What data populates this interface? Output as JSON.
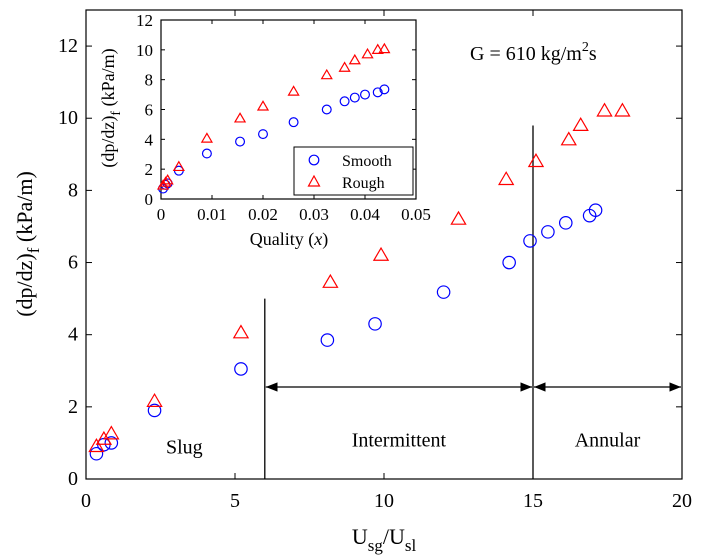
{
  "chart_data": [
    {
      "type": "scatter",
      "xlabel": "U_sg/U_sl",
      "xlabel_main": "U",
      "xlabel_sub1": "sg",
      "xlabel_slash": "/U",
      "xlabel_sub2": "sl",
      "ylabel_main": "(dp/dz)",
      "ylabel_sub": "f",
      "ylabel_unit": " (kPa/m)",
      "xlim": [
        0,
        20
      ],
      "ylim": [
        0,
        13
      ],
      "xticks": [
        0,
        5,
        10,
        15,
        20
      ],
      "yticks": [
        0,
        2,
        4,
        6,
        8,
        10,
        12
      ],
      "xtick_labels": [
        "0",
        "5",
        "10",
        "15",
        "20"
      ],
      "ytick_labels": [
        "0",
        "2",
        "4",
        "6",
        "8",
        "10",
        "12"
      ],
      "annotation": {
        "prefix": "G = 610 kg/m",
        "sup": "2",
        "suffix": "s"
      },
      "regions": [
        {
          "label": "Slug",
          "x_center": 3.3,
          "y": 0.9
        },
        {
          "label": "Intermittent",
          "x_from": 6,
          "x_to": 15,
          "y": 1.1
        },
        {
          "label": "Annular",
          "x_from": 15,
          "x_to": 20,
          "y": 1.1
        }
      ],
      "region_boundaries": [
        {
          "x": 6,
          "y_top": 5.0
        },
        {
          "x": 15,
          "y_top": 9.8
        }
      ],
      "region_arrow_y": 2.55,
      "series": [
        {
          "name": "Smooth",
          "marker": "circle",
          "color": "#0000ff",
          "points": [
            [
              0.35,
              0.7
            ],
            [
              0.6,
              0.95
            ],
            [
              0.85,
              1.0
            ],
            [
              2.3,
              1.9
            ],
            [
              5.2,
              3.05
            ],
            [
              8.1,
              3.85
            ],
            [
              9.7,
              4.3
            ],
            [
              12.0,
              5.18
            ],
            [
              14.2,
              6.0
            ],
            [
              14.9,
              6.6
            ],
            [
              15.5,
              6.85
            ],
            [
              16.1,
              7.1
            ],
            [
              16.9,
              7.3
            ],
            [
              17.1,
              7.45
            ]
          ]
        },
        {
          "name": "Rough",
          "marker": "triangle",
          "color": "#ff0000",
          "points": [
            [
              0.35,
              0.9
            ],
            [
              0.6,
              1.1
            ],
            [
              0.85,
              1.25
            ],
            [
              2.3,
              2.15
            ],
            [
              5.2,
              4.05
            ],
            [
              8.2,
              5.45
            ],
            [
              9.9,
              6.2
            ],
            [
              12.5,
              7.2
            ],
            [
              14.1,
              8.3
            ],
            [
              15.1,
              8.8
            ],
            [
              16.2,
              9.4
            ],
            [
              16.6,
              9.8
            ],
            [
              17.4,
              10.2
            ],
            [
              18.0,
              10.2
            ]
          ]
        }
      ]
    },
    {
      "type": "scatter",
      "xlabel_main": "Quality (",
      "xlabel_var": "x",
      "xlabel_end": ")",
      "ylabel_main": "(dp/dz)",
      "ylabel_sub": "f",
      "ylabel_unit": " (kPa/m)",
      "xlim": [
        0,
        0.05
      ],
      "ylim": [
        0,
        12
      ],
      "xticks": [
        0,
        0.01,
        0.02,
        0.03,
        0.04,
        0.05
      ],
      "yticks": [
        0,
        2,
        4,
        6,
        8,
        10,
        12
      ],
      "xtick_labels": [
        "0",
        "0.01",
        "0.02",
        "0.03",
        "0.04",
        "0.05"
      ],
      "ytick_labels": [
        "0",
        "2",
        "4",
        "6",
        "8",
        "10",
        "12"
      ],
      "legend": {
        "position": "bottom-right",
        "entries": [
          {
            "label": "Smooth",
            "marker": "circle",
            "color": "#0000ff"
          },
          {
            "label": "Rough",
            "marker": "triangle",
            "color": "#ff0000"
          }
        ]
      },
      "series": [
        {
          "name": "Smooth",
          "marker": "circle",
          "color": "#0000ff",
          "points": [
            [
              0.0004,
              0.7
            ],
            [
              0.0009,
              0.95
            ],
            [
              0.0013,
              1.05
            ],
            [
              0.0035,
              1.9
            ],
            [
              0.009,
              3.05
            ],
            [
              0.0155,
              3.85
            ],
            [
              0.02,
              4.35
            ],
            [
              0.026,
              5.15
            ],
            [
              0.0325,
              6.0
            ],
            [
              0.036,
              6.55
            ],
            [
              0.038,
              6.8
            ],
            [
              0.04,
              7.0
            ],
            [
              0.0425,
              7.15
            ],
            [
              0.0438,
              7.35
            ]
          ]
        },
        {
          "name": "Rough",
          "marker": "triangle",
          "color": "#ff0000",
          "points": [
            [
              0.0004,
              0.9
            ],
            [
              0.0009,
              1.1
            ],
            [
              0.0013,
              1.25
            ],
            [
              0.0035,
              2.15
            ],
            [
              0.009,
              4.05
            ],
            [
              0.0155,
              5.4
            ],
            [
              0.02,
              6.2
            ],
            [
              0.026,
              7.2
            ],
            [
              0.0325,
              8.3
            ],
            [
              0.036,
              8.8
            ],
            [
              0.038,
              9.3
            ],
            [
              0.0405,
              9.7
            ],
            [
              0.0425,
              10.0
            ],
            [
              0.0438,
              10.05
            ]
          ]
        }
      ]
    }
  ]
}
